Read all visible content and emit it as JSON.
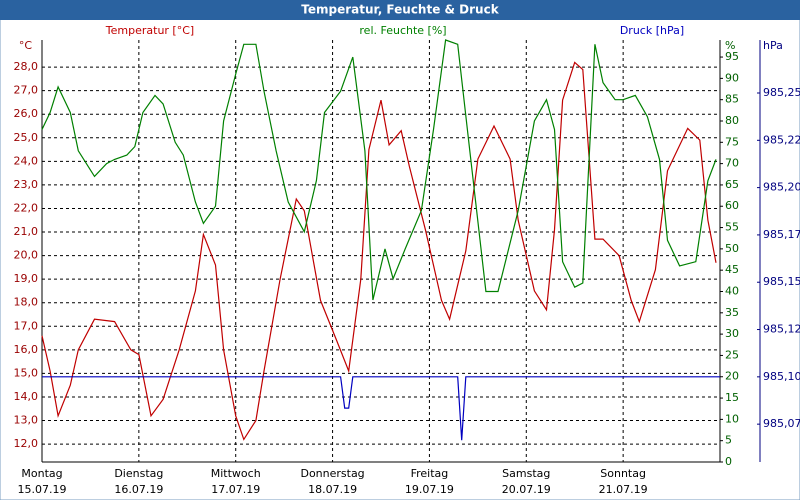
{
  "chart_data": {
    "type": "line",
    "title": "Temperatur, Feuchte & Druck",
    "xlim": [
      0,
      168
    ],
    "xticks": [
      {
        "value": 0,
        "label": "Montag",
        "date": "15.07.19"
      },
      {
        "value": 24,
        "label": "Dienstag",
        "date": "16.07.19"
      },
      {
        "value": 48,
        "label": "Mittwoch",
        "date": "17.07.19"
      },
      {
        "value": 72,
        "label": "Donnerstag",
        "date": "18.07.19"
      },
      {
        "value": 96,
        "label": "Freitag",
        "date": "19.07.19"
      },
      {
        "value": 120,
        "label": "Samstag",
        "date": "20.07.19"
      },
      {
        "value": 144,
        "label": "Sonntag",
        "date": "21.07.19"
      }
    ],
    "ylim": [
      11.24,
      29.15
    ],
    "y_unit": "°C",
    "yticks": [
      {
        "value": 12,
        "label": "12,0"
      },
      {
        "value": 13,
        "label": "13,0"
      },
      {
        "value": 14,
        "label": "14,0"
      },
      {
        "value": 15,
        "label": "15,0"
      },
      {
        "value": 16,
        "label": "16,0"
      },
      {
        "value": 17,
        "label": "17,0"
      },
      {
        "value": 18,
        "label": "18,0"
      },
      {
        "value": 19,
        "label": "19,0"
      },
      {
        "value": 20,
        "label": "20,0"
      },
      {
        "value": 21,
        "label": "21,0"
      },
      {
        "value": 22,
        "label": "22,0"
      },
      {
        "value": 23,
        "label": "23,0"
      },
      {
        "value": 24,
        "label": "24,0"
      },
      {
        "value": 25,
        "label": "25,0"
      },
      {
        "value": 26,
        "label": "26,0"
      },
      {
        "value": 27,
        "label": "27,0"
      },
      {
        "value": 28,
        "label": "28,0"
      }
    ],
    "y2lim": [
      0,
      99
    ],
    "y2_unit": "%",
    "y2ticks": [
      0,
      5,
      10,
      15,
      20,
      25,
      30,
      35,
      40,
      45,
      50,
      55,
      60,
      65,
      70,
      75,
      80,
      85,
      90,
      95
    ],
    "y3lim": [
      985.055,
      985.278
    ],
    "y3_unit": "hPa",
    "y3ticks": [
      {
        "value": 985.075,
        "label": "985,07"
      },
      {
        "value": 985.1,
        "label": "985,10"
      },
      {
        "value": 985.125,
        "label": "985,12"
      },
      {
        "value": 985.15,
        "label": "985,15"
      },
      {
        "value": 985.175,
        "label": "985,17"
      },
      {
        "value": 985.2,
        "label": "985,20"
      },
      {
        "value": 985.225,
        "label": "985,22"
      },
      {
        "value": 985.25,
        "label": "985,25"
      }
    ],
    "grid": true,
    "series": [
      {
        "name": "Temperatur [°C]",
        "color": "#c00000",
        "axis": "y",
        "x": [
          0,
          2,
          4,
          7,
          9,
          13,
          18,
          22,
          24,
          27,
          30,
          34,
          38,
          40,
          43,
          45,
          48,
          50,
          53,
          55,
          59,
          63,
          65,
          69,
          73,
          76,
          79,
          81,
          84,
          86,
          89,
          91,
          95,
          99,
          101,
          105,
          108,
          112,
          116,
          118,
          122,
          125,
          127,
          129,
          132,
          134,
          137,
          139,
          143,
          146,
          148,
          152,
          155,
          160,
          163,
          165,
          167
        ],
        "values": [
          16.6,
          15.1,
          13.2,
          14.5,
          16.0,
          17.3,
          17.2,
          16.0,
          15.8,
          13.2,
          13.9,
          16.0,
          18.5,
          20.9,
          19.6,
          16.0,
          13.2,
          12.2,
          13.0,
          15.1,
          19.0,
          22.4,
          21.9,
          18.1,
          16.4,
          15.1,
          19.0,
          24.5,
          26.6,
          24.7,
          25.3,
          23.8,
          21.1,
          18.1,
          17.3,
          20.2,
          24.1,
          25.5,
          24.1,
          21.5,
          18.5,
          17.7,
          21.1,
          26.6,
          28.2,
          27.9,
          20.7,
          20.7,
          20.0,
          18.1,
          17.2,
          19.4,
          23.6,
          25.4,
          24.9,
          21.5,
          19.7
        ]
      },
      {
        "name": "rel. Feuchte [%]",
        "color": "#008000",
        "axis": "y2",
        "x": [
          0,
          2,
          4,
          7,
          9,
          13,
          16,
          18,
          21,
          23,
          25,
          28,
          30,
          33,
          35,
          38,
          40,
          43,
          45,
          48,
          50,
          53,
          55,
          58,
          61,
          65,
          68,
          70,
          74,
          77,
          80,
          82,
          85,
          87,
          90,
          94,
          97,
          100,
          103,
          106,
          110,
          113,
          118,
          122,
          125,
          127,
          129,
          132,
          134,
          137,
          139,
          142,
          144,
          147,
          150,
          153,
          155,
          158,
          162,
          165,
          167
        ],
        "values": [
          78,
          82,
          88,
          82,
          73,
          67,
          70,
          71,
          72,
          74,
          82,
          86,
          84,
          75,
          72,
          61,
          56,
          60,
          80,
          91,
          98,
          98,
          87,
          73,
          61,
          54,
          66,
          82,
          87,
          95,
          73,
          38,
          50,
          43,
          50,
          59,
          78,
          99,
          98,
          73,
          40,
          40,
          59,
          80,
          85,
          78,
          47,
          41,
          42,
          98,
          89,
          85,
          85,
          86,
          81,
          71,
          52,
          46,
          47,
          66,
          71
        ]
      },
      {
        "name": "Druck [hPa]",
        "color": "#0000c0",
        "axis": "y3",
        "x": [
          0,
          74,
          75,
          76,
          77,
          103,
          104,
          105,
          168
        ],
        "values": [
          985.1,
          985.1,
          985.0835,
          985.0835,
          985.1,
          985.1,
          985.0665,
          985.1,
          985.1
        ]
      }
    ]
  }
}
